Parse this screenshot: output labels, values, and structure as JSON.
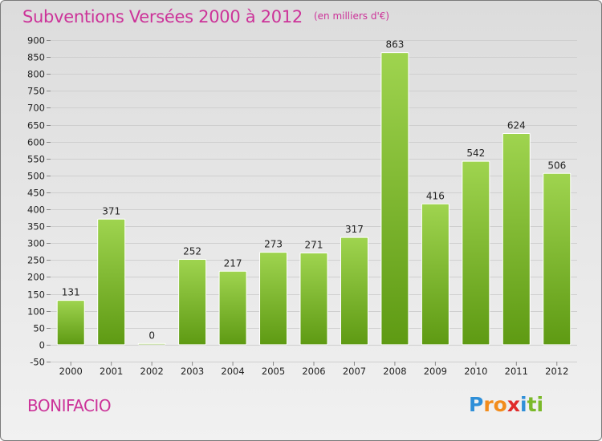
{
  "header": {
    "title": "Subventions Versées 2000 à 2012",
    "subtitle": "(en milliers d'€)"
  },
  "footer": {
    "commune": "BONIFACIO",
    "logo_letters": [
      {
        "ch": "P",
        "color": "#2f8fd8"
      },
      {
        "ch": "r",
        "color": "#f28c1c"
      },
      {
        "ch": "o",
        "color": "#f28c1c"
      },
      {
        "ch": "x",
        "color": "#e02b2b"
      },
      {
        "ch": "i",
        "color": "#2f8fd8"
      },
      {
        "ch": "t",
        "color": "#7ab929"
      },
      {
        "ch": "i",
        "color": "#7ab929"
      }
    ]
  },
  "colors": {
    "bar_light": "#9fd44f",
    "bar_dark": "#5e9a13",
    "grid": "#cfcfcf",
    "axis_text": "#222222",
    "accent": "#cc3399"
  },
  "chart_data": {
    "type": "bar",
    "categories": [
      "2000",
      "2001",
      "2002",
      "2003",
      "2004",
      "2005",
      "2006",
      "2007",
      "2008",
      "2009",
      "2010",
      "2011",
      "2012"
    ],
    "values": [
      131,
      371,
      0,
      252,
      217,
      273,
      271,
      317,
      863,
      416,
      542,
      624,
      506
    ],
    "data_labels": [
      "131",
      "371",
      "0",
      "252",
      "217",
      "273",
      "271",
      "317",
      "863",
      "416",
      "542",
      "624",
      "506"
    ],
    "title": "Subventions Versées 2000 à 2012",
    "xlabel": "",
    "ylabel": "",
    "ylim": [
      -50,
      900
    ],
    "yticks": [
      -50,
      0,
      50,
      100,
      150,
      200,
      250,
      300,
      350,
      400,
      450,
      500,
      550,
      600,
      650,
      700,
      750,
      800,
      850,
      900
    ],
    "grid": true,
    "legend": "none"
  }
}
